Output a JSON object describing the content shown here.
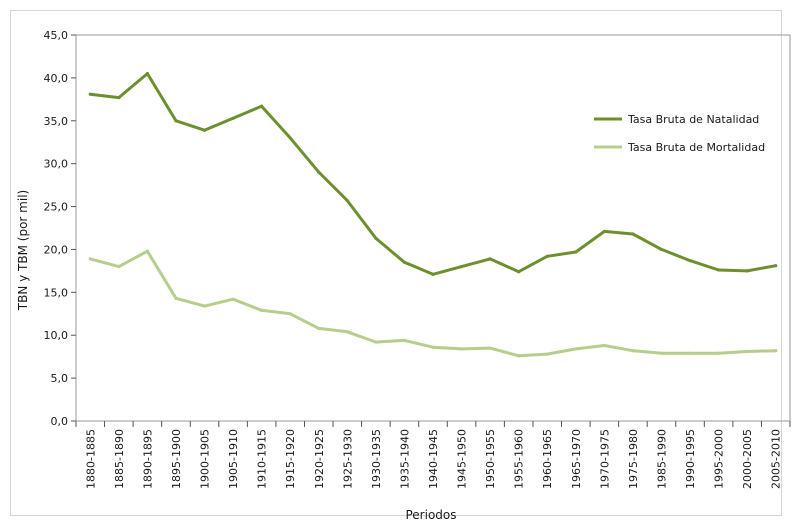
{
  "chart_data": {
    "type": "line",
    "xlabel": "Periodos",
    "ylabel": "TBN y TBM (por mil)",
    "ylim": [
      0,
      45
    ],
    "yticks": [
      "0,0",
      "5,0",
      "10,0",
      "15,0",
      "20,0",
      "25,0",
      "30,0",
      "35,0",
      "40,0",
      "45,0"
    ],
    "categories": [
      "1880-1885",
      "1885-1890",
      "1890-1895",
      "1895-1900",
      "1900-1905",
      "1905-1910",
      "1910-1915",
      "1915-1920",
      "1920-1925",
      "1925-1930",
      "1930-1935",
      "1935-1940",
      "1940-1945",
      "1945-1950",
      "1950-1955",
      "1955-1960",
      "1960-1965",
      "1965-1970",
      "1970-1975",
      "1975-1980",
      "1985-1990",
      "1990-1995",
      "1995-2000",
      "2000-2005",
      "2005-2010"
    ],
    "series": [
      {
        "name": "Tasa Bruta de Natalidad",
        "color": "#6e8f2e",
        "values": [
          38.1,
          37.7,
          40.5,
          35.0,
          33.9,
          35.3,
          36.7,
          33.0,
          29.0,
          25.7,
          21.3,
          18.5,
          17.1,
          18.0,
          18.9,
          17.4,
          19.2,
          19.7,
          22.1,
          21.8,
          20.0,
          18.7,
          17.6,
          17.5,
          18.1
        ]
      },
      {
        "name": "Tasa Bruta de Mortalidad",
        "color": "#b7cd8a",
        "values": [
          18.9,
          18.0,
          19.8,
          14.3,
          13.4,
          14.2,
          12.9,
          12.5,
          10.8,
          10.4,
          9.2,
          9.4,
          8.6,
          8.4,
          8.5,
          7.6,
          7.8,
          8.4,
          8.8,
          8.2,
          7.9,
          7.9,
          7.9,
          8.1,
          8.2
        ]
      }
    ],
    "legend_position": "right"
  }
}
